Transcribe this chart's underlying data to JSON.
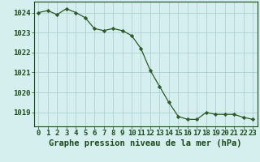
{
  "hours": [
    0,
    1,
    2,
    3,
    4,
    5,
    6,
    7,
    8,
    9,
    10,
    11,
    12,
    13,
    14,
    15,
    16,
    17,
    18,
    19,
    20,
    21,
    22,
    23
  ],
  "pressure": [
    1024.0,
    1024.1,
    1023.9,
    1024.2,
    1024.0,
    1023.75,
    1023.2,
    1023.1,
    1023.2,
    1023.1,
    1022.85,
    1022.2,
    1021.1,
    1020.3,
    1019.5,
    1018.8,
    1018.65,
    1018.65,
    1019.0,
    1018.9,
    1018.9,
    1018.9,
    1018.75,
    1018.65
  ],
  "line_color": "#2d5a27",
  "marker_color": "#2d5a27",
  "background_color": "#d5eeee",
  "grid_color": "#a8cccc",
  "text_color": "#1a4a1a",
  "xlabel": "Graphe pression niveau de la mer (hPa)",
  "ylim_min": 1018.3,
  "ylim_max": 1024.55,
  "yticks": [
    1019,
    1020,
    1021,
    1022,
    1023,
    1024
  ],
  "xticks": [
    0,
    1,
    2,
    3,
    4,
    5,
    6,
    7,
    8,
    9,
    10,
    11,
    12,
    13,
    14,
    15,
    16,
    17,
    18,
    19,
    20,
    21,
    22,
    23
  ],
  "font_size": 6.5,
  "xlabel_fontsize": 7.5
}
